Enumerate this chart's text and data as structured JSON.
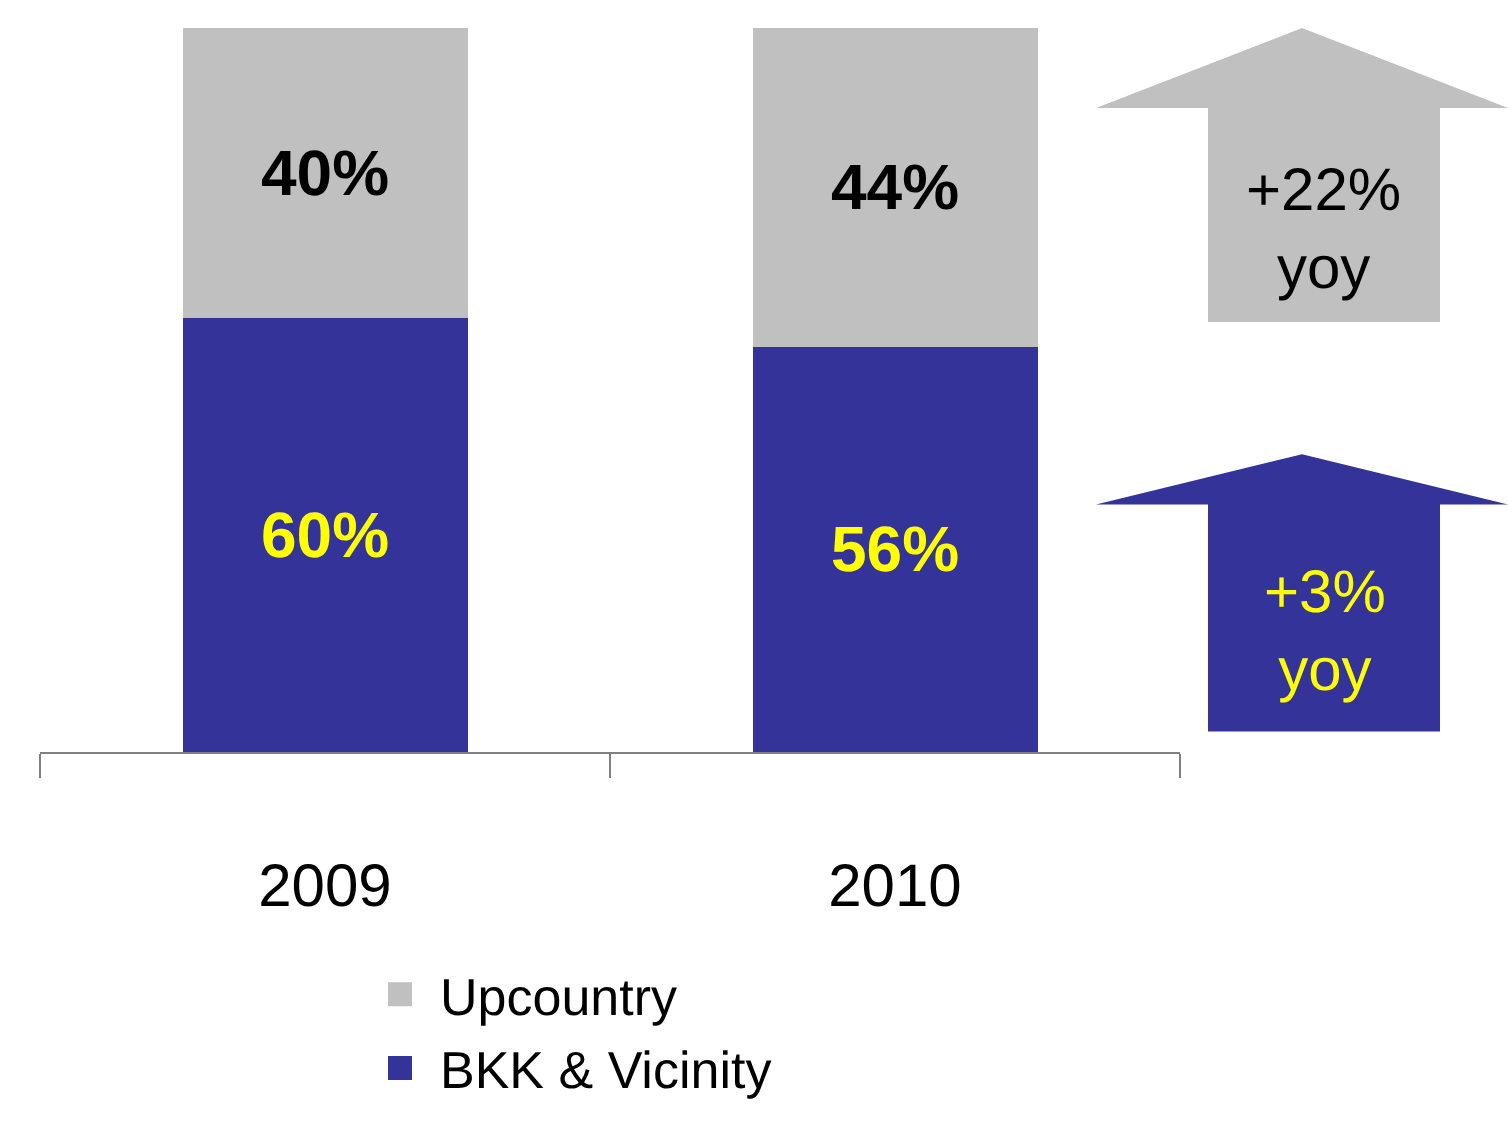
{
  "chart_data": {
    "type": "bar",
    "stacked": true,
    "categories": [
      "2009",
      "2010"
    ],
    "series": [
      {
        "name": "BKK & Vicinity",
        "color": "#333399",
        "values": [
          60,
          56
        ],
        "value_labels": [
          "60%",
          "56%"
        ]
      },
      {
        "name": "Upcountry",
        "color": "#c0c0c0",
        "values": [
          40,
          44
        ],
        "value_labels": [
          "40%",
          "44%"
        ]
      }
    ],
    "ylim": [
      0,
      100
    ],
    "tick_labels": "x",
    "legend": "bottom",
    "annotations": [
      "+22%\nyoy",
      "+3%\nyoy"
    ]
  }
}
